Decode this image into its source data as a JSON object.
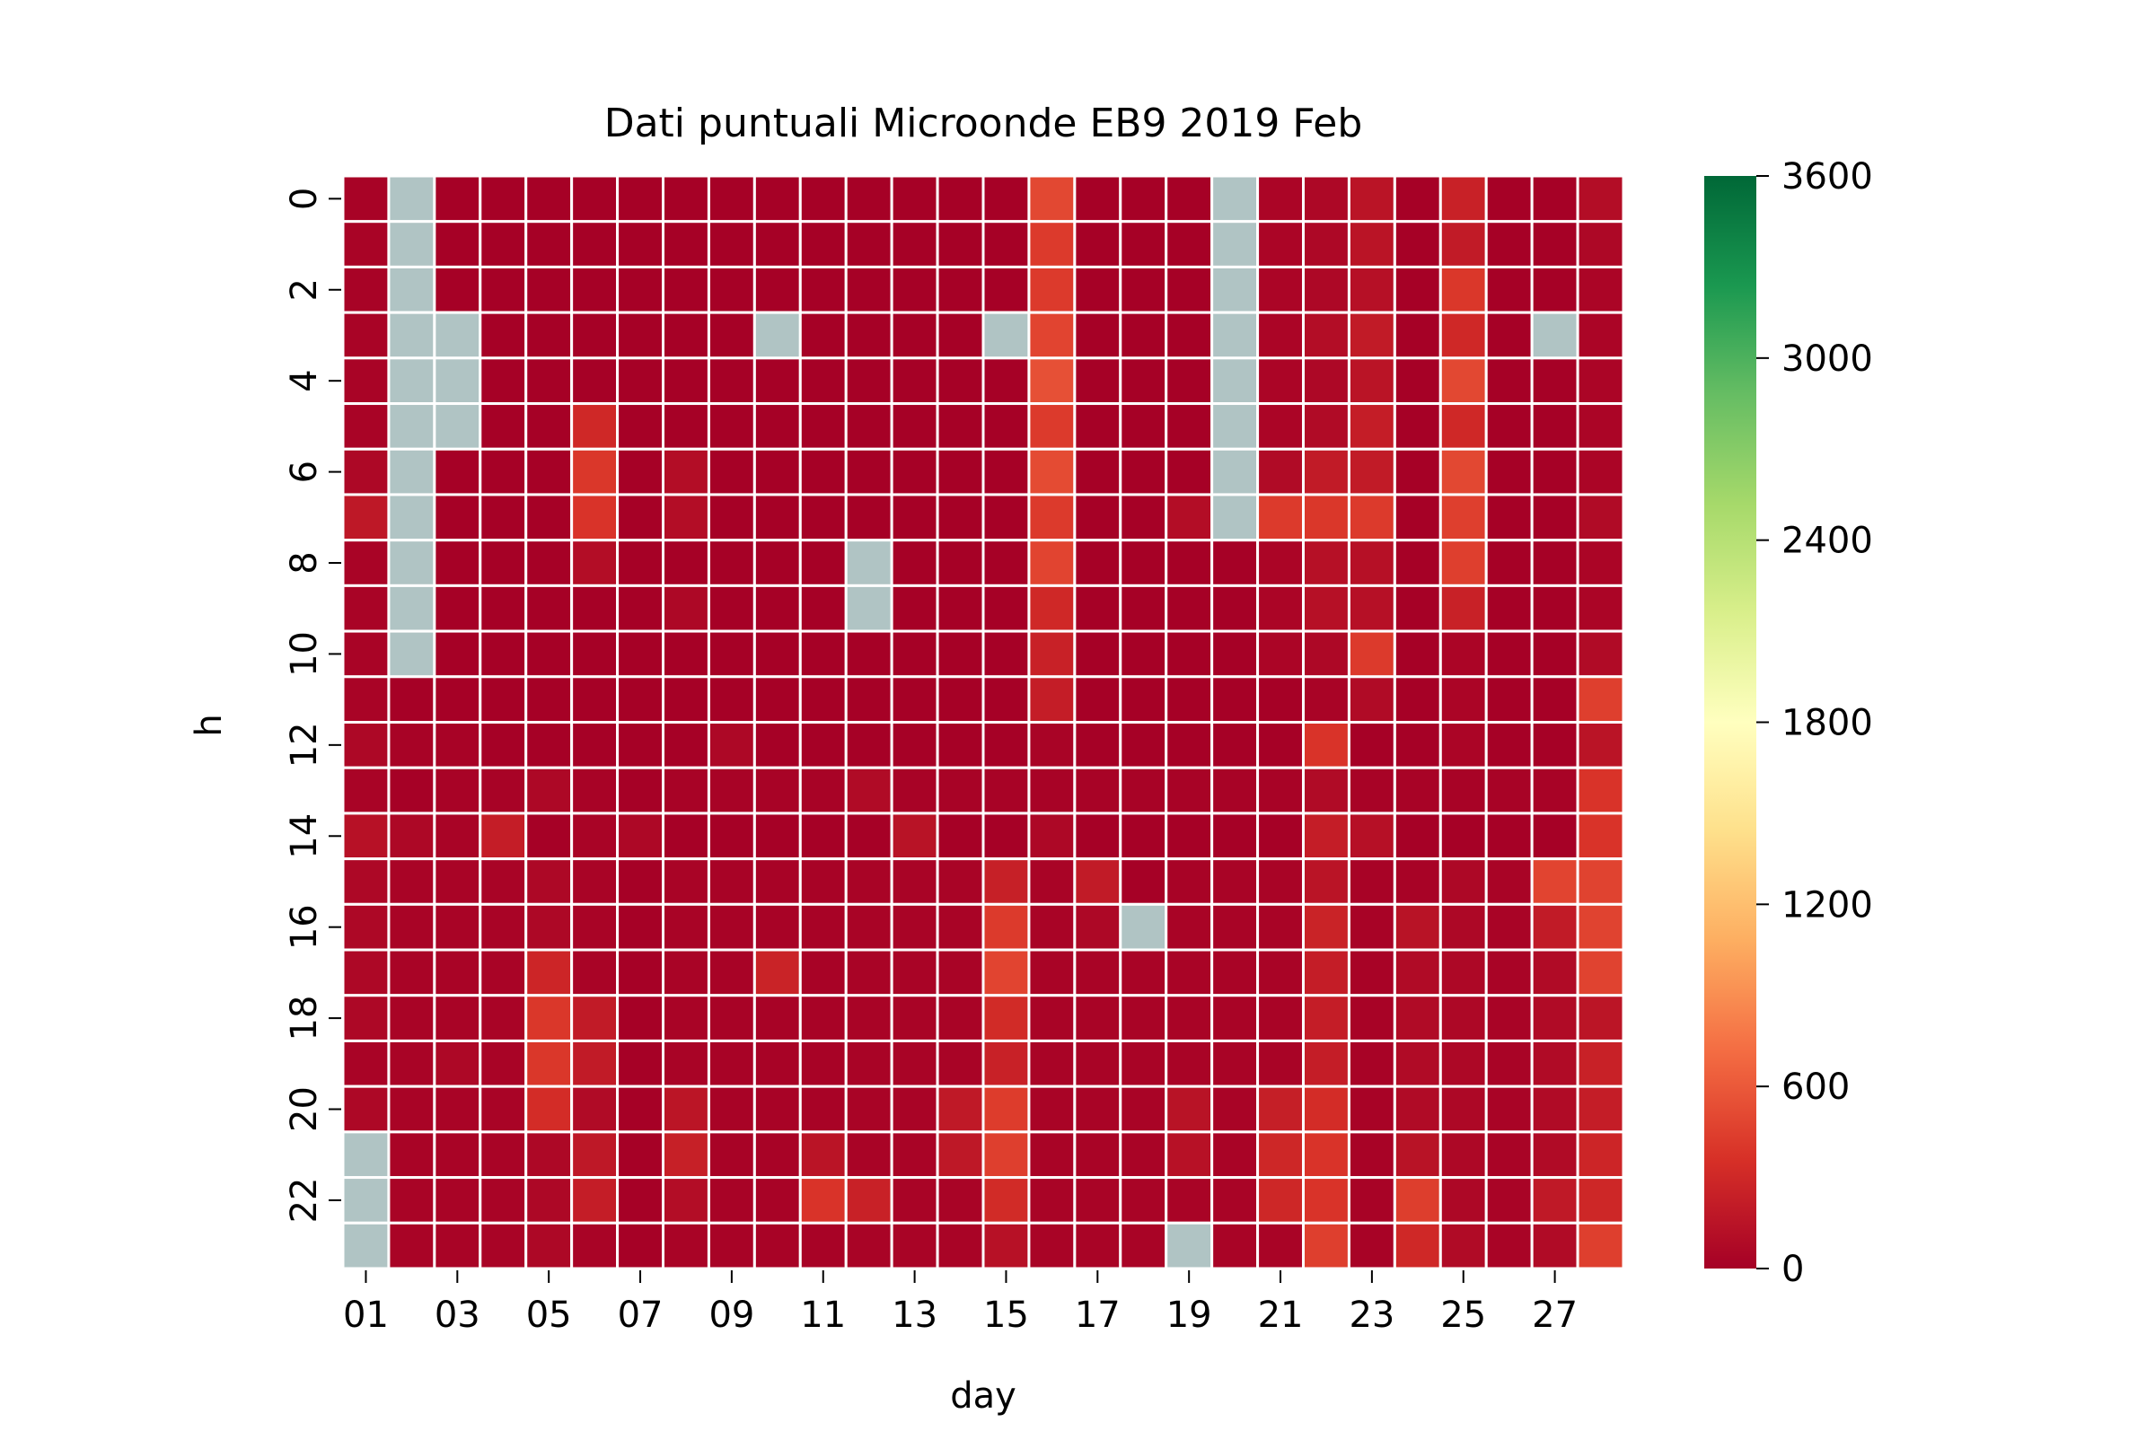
{
  "chart_data": {
    "type": "heatmap",
    "title": "Dati puntuali Microonde EB9 2019 Feb",
    "xlabel": "day",
    "ylabel": "h",
    "x_categories": [
      "01",
      "02",
      "03",
      "04",
      "05",
      "06",
      "07",
      "08",
      "09",
      "10",
      "11",
      "12",
      "13",
      "14",
      "15",
      "16",
      "17",
      "18",
      "19",
      "20",
      "21",
      "22",
      "23",
      "24",
      "25",
      "26",
      "27",
      "28"
    ],
    "x_tick_labels": [
      "01",
      "03",
      "05",
      "07",
      "09",
      "11",
      "13",
      "15",
      "17",
      "19",
      "21",
      "23",
      "25",
      "27"
    ],
    "y_categories": [
      0,
      1,
      2,
      3,
      4,
      5,
      6,
      7,
      8,
      9,
      10,
      11,
      12,
      13,
      14,
      15,
      16,
      17,
      18,
      19,
      20,
      21,
      22,
      23
    ],
    "y_tick_labels": [
      "0",
      "2",
      "4",
      "6",
      "8",
      "10",
      "12",
      "14",
      "16",
      "18",
      "20",
      "22"
    ],
    "colorbar": {
      "colormap": "RdYlGn",
      "range": [
        0,
        3600
      ],
      "tick_labels": [
        "0",
        "600",
        "1200",
        "1800",
        "2400",
        "3000",
        "3600"
      ]
    },
    "missing_color": "#b0c4c4",
    "grid_color": "#ffffff",
    "values": [
      [
        20,
        null,
        10,
        10,
        10,
        10,
        10,
        10,
        10,
        10,
        10,
        10,
        10,
        10,
        10,
        500,
        10,
        10,
        10,
        null,
        40,
        60,
        150,
        10,
        250,
        10,
        10,
        100
      ],
      [
        30,
        null,
        10,
        10,
        10,
        10,
        10,
        10,
        10,
        10,
        10,
        10,
        10,
        10,
        10,
        420,
        10,
        10,
        10,
        null,
        40,
        60,
        150,
        10,
        200,
        10,
        10,
        60
      ],
      [
        20,
        null,
        10,
        10,
        10,
        10,
        10,
        10,
        10,
        10,
        10,
        10,
        10,
        10,
        10,
        420,
        10,
        10,
        10,
        null,
        40,
        60,
        120,
        10,
        400,
        10,
        10,
        40
      ],
      [
        30,
        null,
        null,
        10,
        10,
        10,
        10,
        10,
        10,
        null,
        10,
        10,
        10,
        10,
        null,
        480,
        10,
        10,
        10,
        null,
        40,
        100,
        200,
        10,
        300,
        10,
        null,
        40
      ],
      [
        30,
        null,
        null,
        10,
        10,
        10,
        10,
        10,
        10,
        10,
        10,
        10,
        10,
        10,
        10,
        550,
        10,
        10,
        10,
        null,
        40,
        60,
        150,
        10,
        500,
        10,
        10,
        40
      ],
      [
        30,
        null,
        null,
        10,
        10,
        300,
        10,
        10,
        10,
        10,
        10,
        10,
        10,
        10,
        10,
        420,
        10,
        10,
        10,
        null,
        40,
        80,
        220,
        10,
        300,
        10,
        10,
        40
      ],
      [
        60,
        null,
        10,
        10,
        10,
        400,
        10,
        100,
        10,
        10,
        10,
        10,
        10,
        10,
        10,
        520,
        10,
        10,
        10,
        null,
        80,
        200,
        200,
        10,
        500,
        10,
        10,
        40
      ],
      [
        180,
        null,
        10,
        10,
        10,
        380,
        10,
        100,
        10,
        10,
        10,
        10,
        10,
        10,
        10,
        420,
        10,
        10,
        100,
        null,
        420,
        400,
        420,
        10,
        450,
        10,
        10,
        80
      ],
      [
        30,
        null,
        10,
        10,
        10,
        100,
        10,
        10,
        10,
        10,
        10,
        null,
        10,
        10,
        10,
        480,
        10,
        10,
        10,
        10,
        40,
        120,
        120,
        10,
        450,
        10,
        10,
        40
      ],
      [
        30,
        null,
        10,
        10,
        10,
        10,
        10,
        60,
        10,
        10,
        10,
        null,
        10,
        10,
        10,
        300,
        10,
        10,
        10,
        10,
        40,
        120,
        120,
        10,
        250,
        10,
        10,
        40
      ],
      [
        30,
        null,
        10,
        10,
        10,
        10,
        10,
        10,
        10,
        10,
        10,
        10,
        10,
        10,
        10,
        250,
        10,
        10,
        10,
        10,
        40,
        60,
        420,
        10,
        40,
        10,
        10,
        80
      ],
      [
        30,
        10,
        10,
        10,
        10,
        10,
        10,
        10,
        10,
        10,
        10,
        10,
        10,
        10,
        10,
        220,
        10,
        10,
        10,
        10,
        10,
        30,
        80,
        10,
        40,
        10,
        10,
        450
      ],
      [
        60,
        20,
        20,
        10,
        10,
        10,
        10,
        10,
        60,
        10,
        10,
        10,
        10,
        10,
        10,
        30,
        10,
        10,
        10,
        10,
        10,
        380,
        10,
        10,
        40,
        10,
        10,
        150
      ],
      [
        30,
        10,
        20,
        20,
        60,
        20,
        10,
        20,
        20,
        20,
        20,
        80,
        20,
        20,
        20,
        20,
        20,
        20,
        20,
        20,
        20,
        80,
        20,
        20,
        20,
        20,
        20,
        380
      ],
      [
        130,
        60,
        30,
        220,
        10,
        30,
        60,
        10,
        10,
        10,
        10,
        10,
        140,
        10,
        10,
        60,
        10,
        10,
        10,
        10,
        10,
        220,
        120,
        10,
        10,
        10,
        10,
        380
      ],
      [
        60,
        30,
        30,
        30,
        60,
        30,
        10,
        30,
        20,
        20,
        20,
        30,
        30,
        30,
        240,
        30,
        200,
        10,
        20,
        30,
        30,
        150,
        20,
        20,
        60,
        30,
        480,
        470
      ],
      [
        60,
        30,
        30,
        30,
        60,
        30,
        10,
        30,
        20,
        20,
        20,
        30,
        30,
        30,
        420,
        30,
        60,
        null,
        30,
        30,
        30,
        260,
        20,
        140,
        60,
        30,
        200,
        470
      ],
      [
        60,
        30,
        30,
        30,
        280,
        30,
        10,
        30,
        20,
        260,
        20,
        30,
        30,
        30,
        480,
        30,
        30,
        30,
        30,
        30,
        30,
        220,
        20,
        80,
        60,
        30,
        80,
        470
      ],
      [
        60,
        30,
        30,
        30,
        400,
        200,
        10,
        30,
        20,
        20,
        20,
        30,
        30,
        30,
        320,
        30,
        30,
        30,
        30,
        30,
        30,
        220,
        20,
        80,
        60,
        30,
        80,
        160
      ],
      [
        30,
        30,
        60,
        30,
        400,
        200,
        10,
        30,
        20,
        20,
        20,
        30,
        30,
        30,
        250,
        30,
        30,
        30,
        30,
        30,
        30,
        220,
        20,
        80,
        60,
        30,
        80,
        250
      ],
      [
        60,
        30,
        30,
        30,
        330,
        80,
        10,
        160,
        20,
        20,
        20,
        30,
        30,
        190,
        430,
        30,
        30,
        30,
        140,
        30,
        230,
        330,
        20,
        80,
        60,
        30,
        80,
        220
      ],
      [
        null,
        30,
        30,
        30,
        60,
        180,
        10,
        240,
        20,
        20,
        150,
        30,
        30,
        180,
        450,
        30,
        30,
        30,
        130,
        30,
        290,
        380,
        20,
        140,
        60,
        30,
        80,
        280
      ],
      [
        null,
        30,
        30,
        30,
        60,
        220,
        10,
        100,
        20,
        20,
        380,
        250,
        30,
        30,
        320,
        30,
        30,
        30,
        30,
        30,
        290,
        380,
        20,
        440,
        60,
        30,
        190,
        290
      ],
      [
        null,
        30,
        30,
        30,
        60,
        30,
        10,
        30,
        20,
        20,
        20,
        30,
        30,
        30,
        130,
        30,
        30,
        30,
        null,
        30,
        30,
        450,
        20,
        300,
        80,
        30,
        80,
        450
      ]
    ]
  }
}
